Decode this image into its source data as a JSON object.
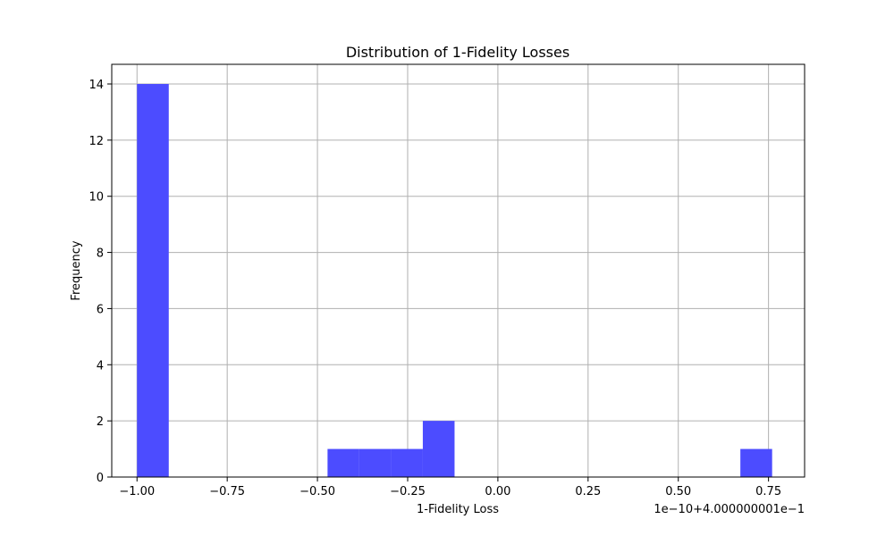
{
  "chart_data": {
    "type": "bar",
    "title": "Distribution of 1-Fidelity Losses",
    "xlabel": "1-Fidelity Loss",
    "ylabel": "Frequency",
    "x_offset_text": "1e−10+4.000000001e−1",
    "xlim": [
      -1.07,
      0.85
    ],
    "ylim": [
      0,
      14.7
    ],
    "grid": true,
    "bar_color": "#4c4cff",
    "x_ticks": [
      -1.0,
      -0.75,
      -0.5,
      -0.25,
      0.0,
      0.25,
      0.5,
      0.75
    ],
    "x_tick_labels": [
      "−1.00",
      "−0.75",
      "−0.50",
      "−0.25",
      "0.00",
      "0.25",
      "0.50",
      "0.75"
    ],
    "y_ticks": [
      0,
      2,
      4,
      6,
      8,
      10,
      12,
      14
    ],
    "y_tick_labels": [
      "0",
      "2",
      "4",
      "6",
      "8",
      "10",
      "12",
      "14"
    ],
    "bins": [
      {
        "x0": -1.0,
        "x1": -0.912,
        "count": 14
      },
      {
        "x0": -0.472,
        "x1": -0.384,
        "count": 1
      },
      {
        "x0": -0.384,
        "x1": -0.296,
        "count": 1
      },
      {
        "x0": -0.296,
        "x1": -0.208,
        "count": 1
      },
      {
        "x0": -0.208,
        "x1": -0.12,
        "count": 2
      },
      {
        "x0": 0.672,
        "x1": 0.76,
        "count": 1
      }
    ]
  }
}
